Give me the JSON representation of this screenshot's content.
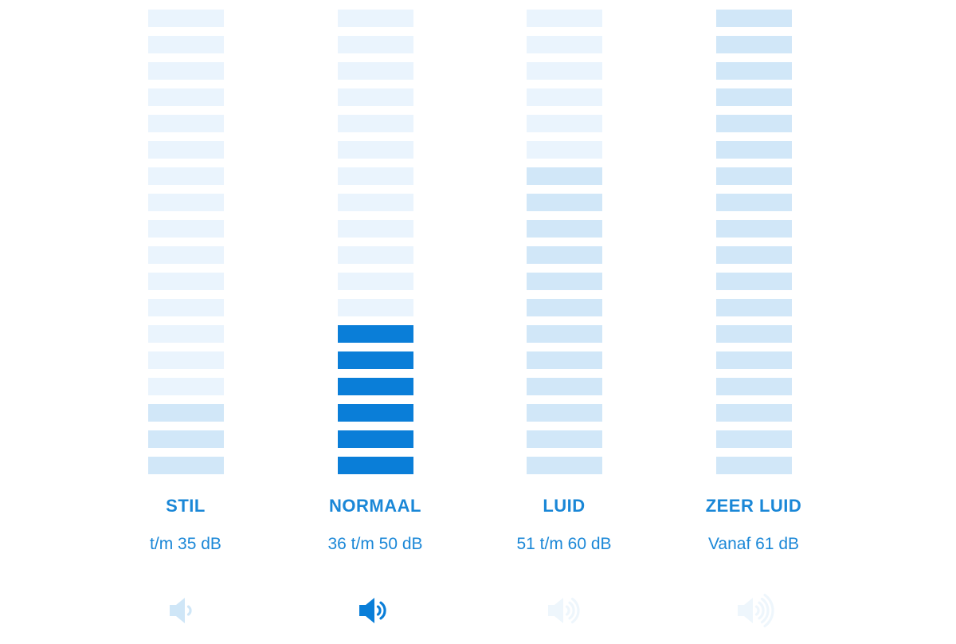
{
  "colors": {
    "text": "#1a87d7",
    "active_bar": "#0a7ed8",
    "active_icon": "#0a7ed8",
    "pale_bar": "#eaf4fd",
    "medium_bar": "#d1e7f8",
    "icon_pale": "#cfe6f7",
    "icon_very_pale": "#eef6fc"
  },
  "segments_per_column": 18,
  "levels": [
    {
      "label": "STIL",
      "range": "t/m 35 dB",
      "level_segments": 3,
      "active": false,
      "icon": "speaker-one-wave-icon"
    },
    {
      "label": "NORMAAL",
      "range": "36 t/m 50 dB",
      "level_segments": 6,
      "active": true,
      "icon": "speaker-two-waves-icon"
    },
    {
      "label": "LUID",
      "range": "51 t/m 60 dB",
      "level_segments": 12,
      "active": false,
      "icon": "speaker-three-waves-icon"
    },
    {
      "label": "ZEER LUID",
      "range": "Vanaf 61 dB",
      "level_segments": 18,
      "active": false,
      "icon": "speaker-four-waves-icon"
    }
  ]
}
